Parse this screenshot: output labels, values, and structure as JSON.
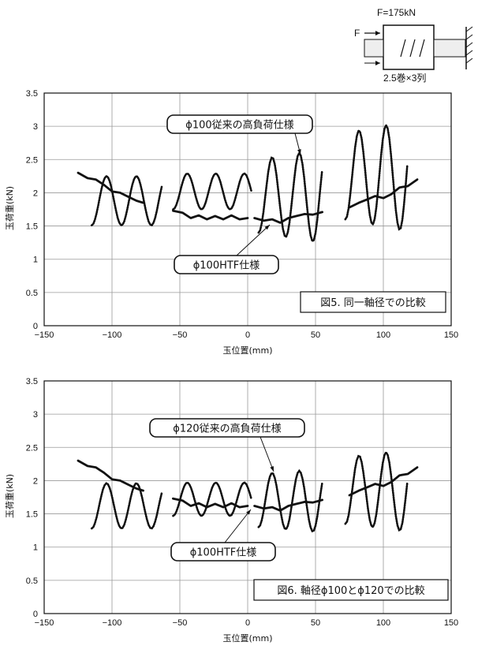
{
  "diagram": {
    "force_label": "F=175kN",
    "f_label": "F",
    "config_label": "2.5巻×3列"
  },
  "chart_data": [
    {
      "type": "line",
      "caption": "図5. 同一軸径での比較",
      "xlabel": "玉位置(mm)",
      "ylabel": "玉荷重(kN)",
      "xlim": [
        -150,
        150
      ],
      "ylim": [
        0,
        3.5
      ],
      "xticks": [
        -150,
        -100,
        -50,
        0,
        50,
        100,
        150
      ],
      "yticks": [
        0,
        0.5,
        1,
        1.5,
        2,
        2.5,
        3,
        3.5
      ],
      "xtick_labels": [
        "−150",
        "−100",
        "−50",
        "0",
        "50",
        "100",
        "150"
      ],
      "ytick_labels": [
        "0",
        "0.5",
        "1",
        "1.5",
        "2",
        "2.5",
        "3",
        "3.5"
      ],
      "grid": true,
      "callouts": [
        {
          "label": "ϕ100従来の高負荷仕様"
        },
        {
          "label": "ϕ100HTF仕様"
        }
      ],
      "series": [
        {
          "name": "ϕ100従来の高負荷仕様",
          "style": "dotted",
          "segments": [
            {
              "x0": -115,
              "x1": -63,
              "base": 1.88,
              "amp": 0.37,
              "period": 22,
              "phase": -115,
              "y_start": 1.85
            },
            {
              "x0": -55,
              "x1": 3,
              "base": 2.02,
              "amp": 0.27,
              "period": 21,
              "phase": -55,
              "y_start": 1.95,
              "amp_growth": 0
            },
            {
              "x0": 8,
              "x1": 55,
              "base": 1.95,
              "amp": 0.55,
              "period": 20,
              "phase": 8,
              "y_start": 1.6,
              "amp_growth": 0.006
            },
            {
              "x0": 72,
              "x1": 118,
              "base": 2.25,
              "amp": 0.65,
              "period": 20,
              "phase": 72,
              "y_start": 2.1,
              "amp_growth": 0.006
            }
          ]
        },
        {
          "name": "ϕ100HTF仕様",
          "style": "solid",
          "segments": [
            {
              "x": [
                -125,
                -118,
                -112,
                -106,
                -100,
                -94,
                -88,
                -82,
                -77
              ],
              "y": [
                2.3,
                2.22,
                2.2,
                2.12,
                2.02,
                2.0,
                1.94,
                1.88,
                1.85
              ]
            },
            {
              "x": [
                -55,
                -48,
                -42,
                -36,
                -30,
                -24,
                -18,
                -12,
                -6,
                0
              ],
              "y": [
                1.73,
                1.7,
                1.62,
                1.66,
                1.6,
                1.65,
                1.6,
                1.66,
                1.6,
                1.62
              ]
            },
            {
              "x": [
                5,
                12,
                18,
                24,
                30,
                36,
                42,
                48,
                55
              ],
              "y": [
                1.62,
                1.58,
                1.6,
                1.55,
                1.62,
                1.65,
                1.68,
                1.67,
                1.71
              ]
            },
            {
              "x": [
                75,
                82,
                88,
                94,
                100,
                106,
                112,
                118,
                125
              ],
              "y": [
                1.78,
                1.85,
                1.9,
                1.95,
                1.92,
                1.98,
                2.08,
                2.1,
                2.2
              ]
            }
          ]
        }
      ]
    },
    {
      "type": "line",
      "caption": "図6. 軸径ϕ100とϕ120での比較",
      "xlabel": "玉位置(mm)",
      "ylabel": "玉荷重(kN)",
      "xlim": [
        -150,
        150
      ],
      "ylim": [
        0,
        3.5
      ],
      "xticks": [
        -150,
        -100,
        -50,
        0,
        50,
        100,
        150
      ],
      "yticks": [
        0,
        0.5,
        1,
        1.5,
        2,
        2.5,
        3,
        3.5
      ],
      "xtick_labels": [
        "−150",
        "−100",
        "−50",
        "0",
        "50",
        "100",
        "150"
      ],
      "ytick_labels": [
        "0",
        "0.5",
        "1",
        "1.5",
        "2",
        "2.5",
        "3",
        "3.5"
      ],
      "grid": true,
      "callouts": [
        {
          "label": "ϕ120従来の高負荷仕様"
        },
        {
          "label": "ϕ100HTF仕様"
        }
      ],
      "series": [
        {
          "name": "ϕ120従来の高負荷仕様",
          "style": "dotted",
          "segments": [
            {
              "x0": -115,
              "x1": -63,
              "base": 1.62,
              "amp": 0.34,
              "period": 22,
              "phase": -115,
              "y_start": 1.6
            },
            {
              "x0": -55,
              "x1": 3,
              "base": 1.72,
              "amp": 0.25,
              "period": 21,
              "phase": -55,
              "y_start": 1.7
            },
            {
              "x0": 8,
              "x1": 55,
              "base": 1.7,
              "amp": 0.4,
              "period": 20,
              "phase": 8,
              "y_start": 1.5,
              "amp_growth": 0.004
            },
            {
              "x0": 72,
              "x1": 118,
              "base": 1.85,
              "amp": 0.5,
              "period": 20,
              "phase": 72,
              "y_start": 1.6,
              "amp_growth": 0.005
            }
          ]
        },
        {
          "name": "ϕ100HTF仕様",
          "style": "solid",
          "segments": [
            {
              "x": [
                -125,
                -118,
                -112,
                -106,
                -100,
                -94,
                -88,
                -82,
                -77
              ],
              "y": [
                2.3,
                2.22,
                2.2,
                2.12,
                2.02,
                2.0,
                1.94,
                1.88,
                1.85
              ]
            },
            {
              "x": [
                -55,
                -48,
                -42,
                -36,
                -30,
                -24,
                -18,
                -12,
                -6,
                0
              ],
              "y": [
                1.73,
                1.7,
                1.62,
                1.66,
                1.6,
                1.65,
                1.6,
                1.66,
                1.6,
                1.62
              ]
            },
            {
              "x": [
                5,
                12,
                18,
                24,
                30,
                36,
                42,
                48,
                55
              ],
              "y": [
                1.62,
                1.58,
                1.6,
                1.55,
                1.62,
                1.65,
                1.68,
                1.67,
                1.71
              ]
            },
            {
              "x": [
                75,
                82,
                88,
                94,
                100,
                106,
                112,
                118,
                125
              ],
              "y": [
                1.78,
                1.85,
                1.9,
                1.95,
                1.92,
                1.98,
                2.08,
                2.1,
                2.2
              ]
            }
          ]
        }
      ]
    }
  ]
}
